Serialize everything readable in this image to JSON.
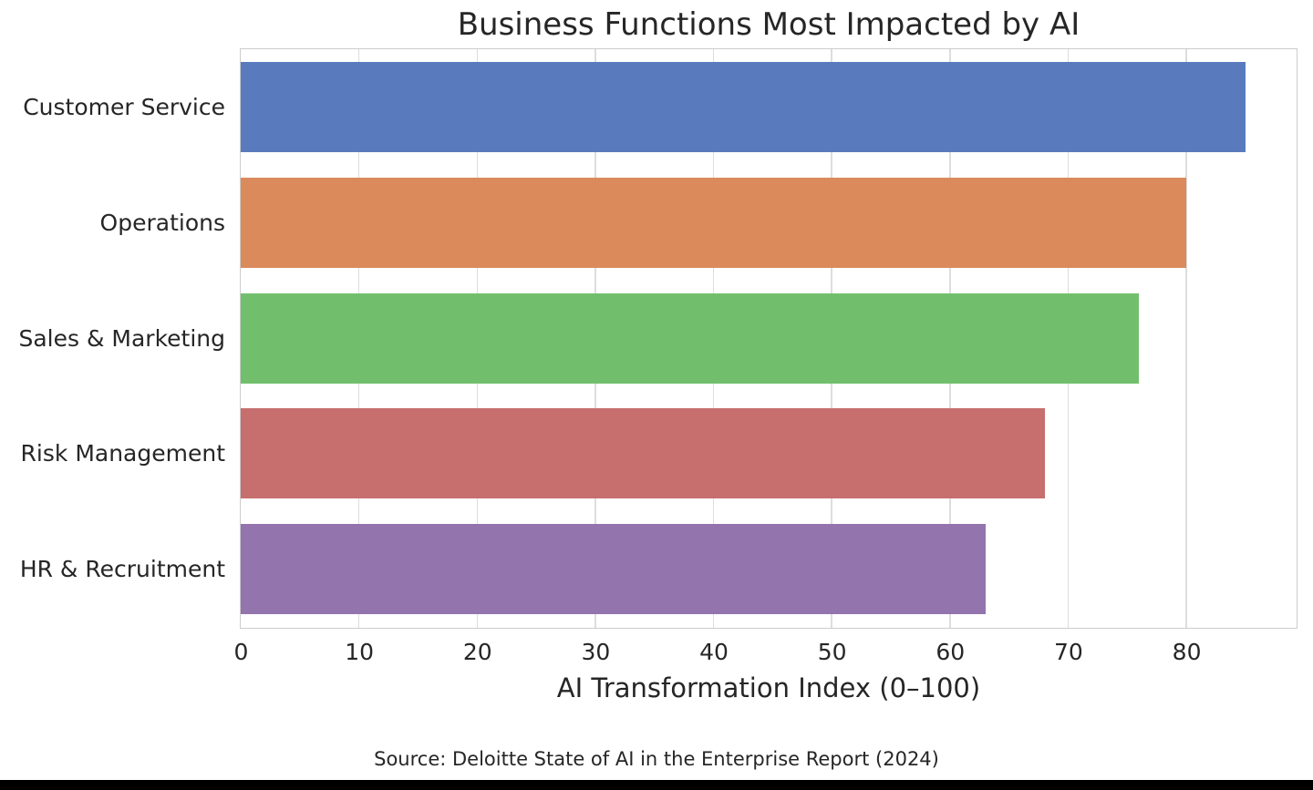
{
  "chart_data": {
    "type": "bar",
    "orientation": "horizontal",
    "title": "Business Functions Most Impacted by AI",
    "categories": [
      "Customer Service",
      "Operations",
      "Sales & Marketing",
      "Risk Management",
      "HR & Recruitment"
    ],
    "values": [
      85,
      80,
      76,
      68,
      63
    ],
    "bar_colors": [
      "#597BBE",
      "#DB8A5C",
      "#71BF6C",
      "#C76E6E",
      "#9374AC"
    ],
    "xlabel": "AI Transformation Index (0–100)",
    "ylabel": "",
    "xlim": [
      0,
      89.25
    ],
    "xticks": [
      0,
      10,
      20,
      30,
      40,
      50,
      60,
      70,
      80
    ],
    "grid": true,
    "grid_color": "#dddddd",
    "spine_color": "#cccccc",
    "legend": "none"
  },
  "source_note": "Source: Deloitte State of AI in the Enterprise Report (2024)"
}
